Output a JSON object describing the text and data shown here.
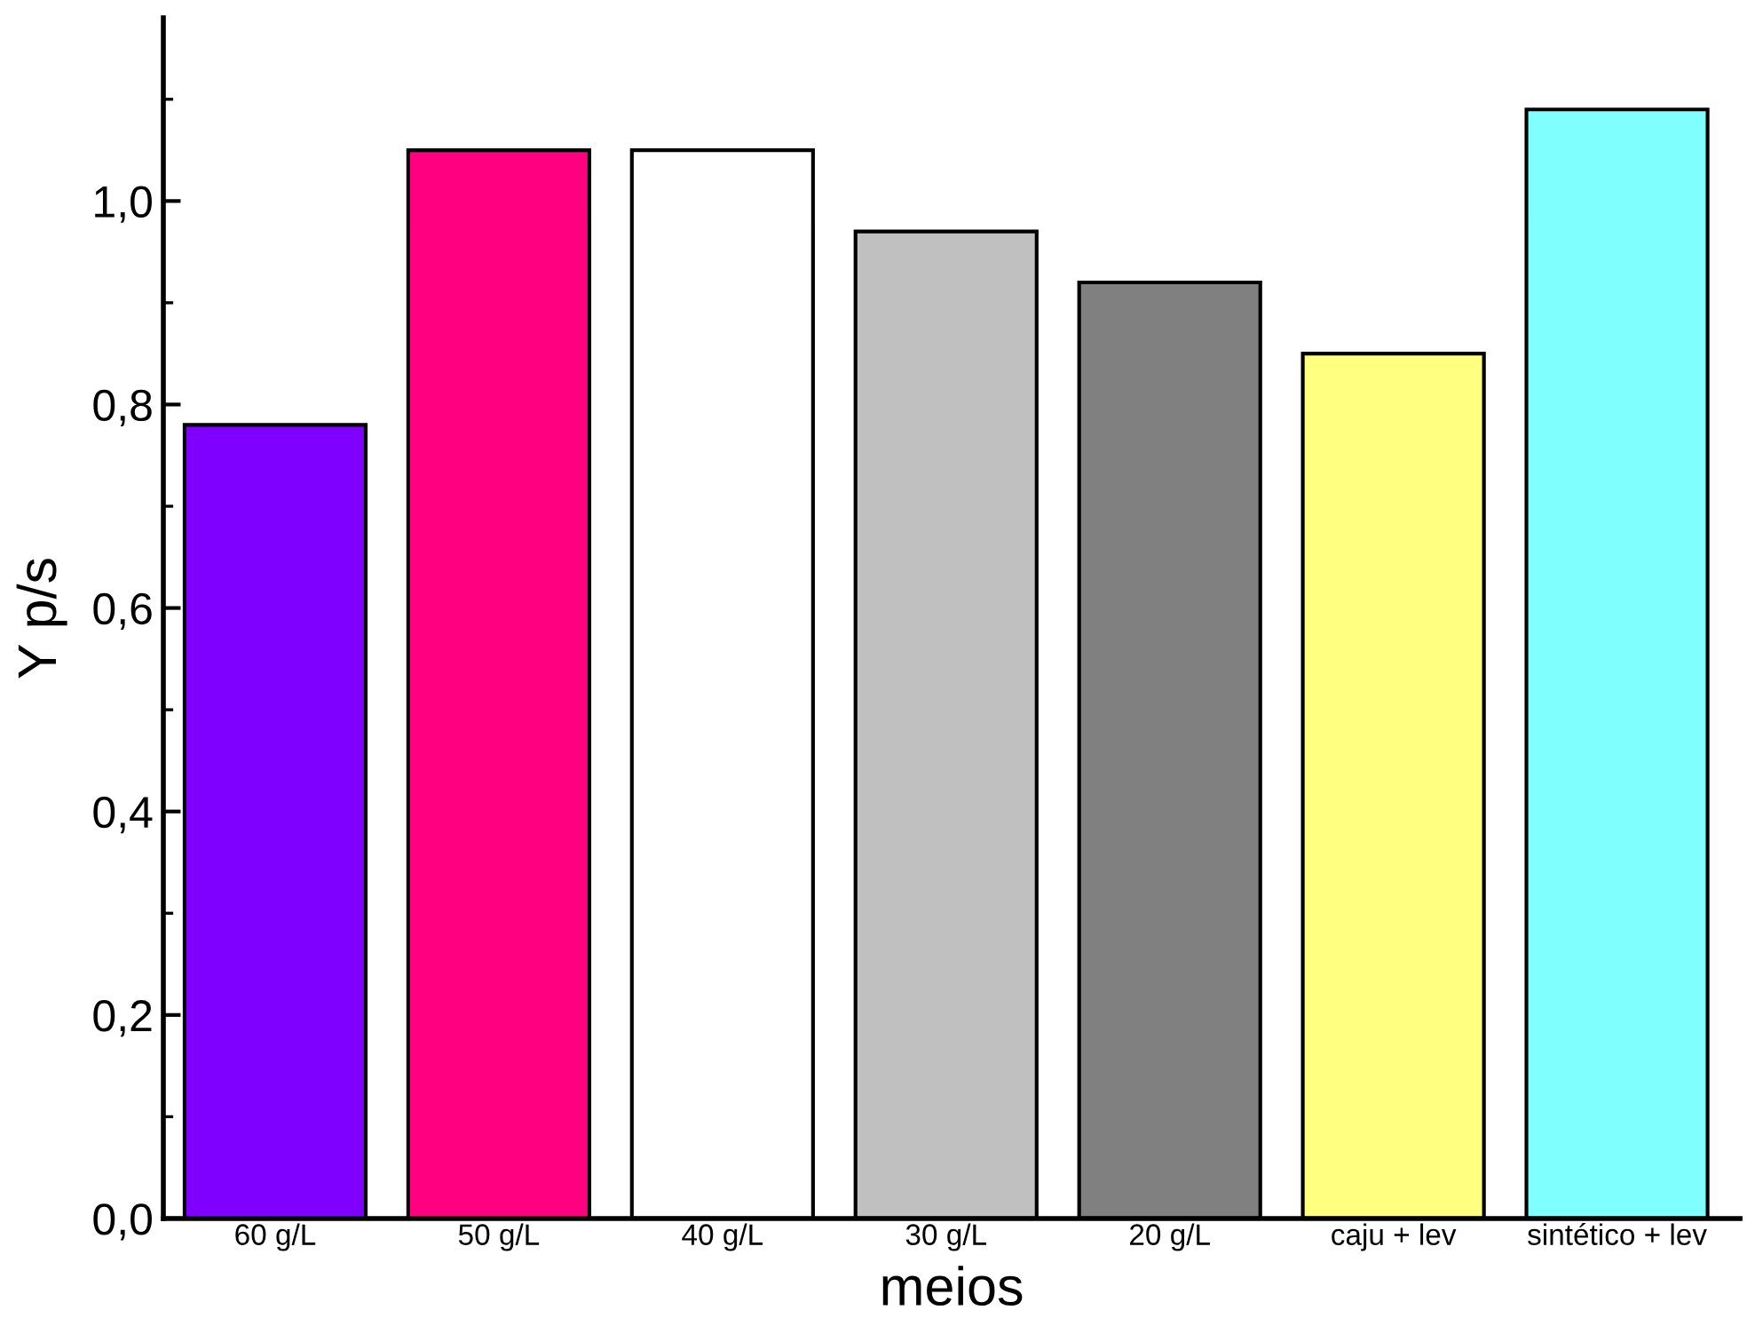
{
  "chart_data": {
    "type": "bar",
    "xlabel": "meios",
    "ylabel": "Y p/s",
    "categories": [
      "60 g/L",
      "50 g/L",
      "40 g/L",
      "30 g/L",
      "20 g/L",
      "caju + lev",
      "sintético + lev"
    ],
    "values": [
      0.78,
      1.05,
      1.05,
      0.97,
      0.92,
      0.85,
      1.09
    ],
    "colors": [
      "#8000ff",
      "#ff0080",
      "#ffffff",
      "#c0c0c0",
      "#808080",
      "#ffff80",
      "#80ffff"
    ],
    "ylim": [
      0,
      1.18
    ],
    "yticks": [
      {
        "value": 0,
        "label": "0,0"
      },
      {
        "value": 0.1,
        "label": null
      },
      {
        "value": 0.2,
        "label": "0,2"
      },
      {
        "value": 0.3,
        "label": null
      },
      {
        "value": 0.4,
        "label": "0,4"
      },
      {
        "value": 0.5,
        "label": null
      },
      {
        "value": 0.6,
        "label": "0,6"
      },
      {
        "value": 0.7,
        "label": null
      },
      {
        "value": 0.8,
        "label": "0,8"
      },
      {
        "value": 0.9,
        "label": null
      },
      {
        "value": 1.0,
        "label": "1,0"
      },
      {
        "value": 1.1,
        "label": null
      }
    ],
    "grid": false,
    "legend": false
  }
}
